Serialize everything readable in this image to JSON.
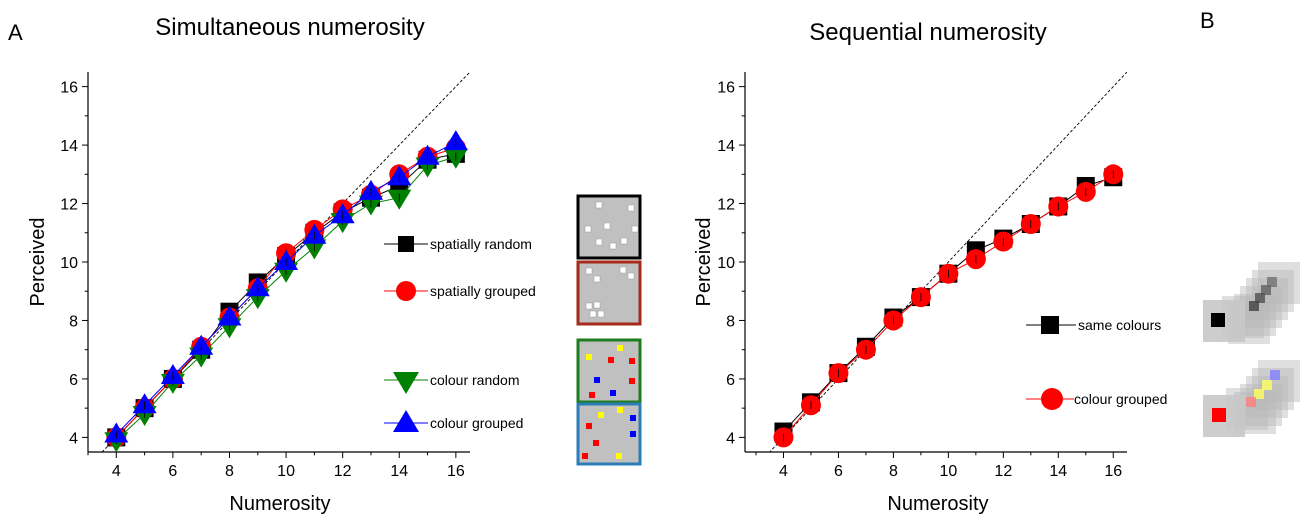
{
  "panel_letters": {
    "a": "A",
    "b": "B"
  },
  "chart_data": [
    {
      "type": "line",
      "title": "Simultaneous numerosity",
      "xlabel": "Numerosity",
      "ylabel": "Perceived",
      "xlim": [
        3,
        16.5
      ],
      "ylim": [
        3.5,
        16.5
      ],
      "xticks": [
        4,
        6,
        8,
        10,
        12,
        14,
        16
      ],
      "yticks": [
        4,
        6,
        8,
        10,
        12,
        14,
        16
      ],
      "identity_line": true,
      "grid": false,
      "legend_position": "right",
      "x": [
        4,
        5,
        6,
        7,
        8,
        9,
        10,
        11,
        12,
        13,
        14,
        15,
        16
      ],
      "series": [
        {
          "name": "spatially random",
          "marker": "square",
          "color": "#000000",
          "values": [
            4.0,
            5.0,
            6.0,
            7.0,
            8.3,
            9.3,
            10.2,
            11.0,
            11.7,
            12.2,
            12.6,
            13.5,
            13.7
          ]
        },
        {
          "name": "spatially grouped",
          "marker": "circle",
          "color": "#ff0000",
          "values": [
            4.0,
            5.0,
            6.0,
            7.1,
            8.1,
            9.1,
            10.3,
            11.1,
            11.8,
            12.3,
            13.0,
            13.6,
            13.9
          ]
        },
        {
          "name": "colour random",
          "marker": "triangle-down",
          "color": "#008000",
          "values": [
            3.9,
            4.8,
            5.9,
            6.8,
            7.8,
            8.8,
            9.7,
            10.5,
            11.4,
            12.0,
            12.2,
            13.3,
            13.6
          ]
        },
        {
          "name": "colour grouped",
          "marker": "triangle-up",
          "color": "#0000ff",
          "values": [
            4.1,
            5.1,
            6.1,
            7.1,
            8.1,
            9.1,
            10.0,
            10.9,
            11.6,
            12.4,
            12.9,
            13.6,
            14.1
          ]
        }
      ]
    },
    {
      "type": "line",
      "title": "Sequential numerosity",
      "xlabel": "Numerosity",
      "ylabel": "Perceived",
      "xlim": [
        2.6,
        16.5
      ],
      "ylim": [
        3.5,
        16.5
      ],
      "xticks": [
        4,
        6,
        8,
        10,
        12,
        14,
        16
      ],
      "yticks": [
        4,
        6,
        8,
        10,
        12,
        14,
        16
      ],
      "identity_line": true,
      "grid": false,
      "legend_position": "right",
      "x": [
        4,
        5,
        6,
        7,
        8,
        9,
        10,
        11,
        12,
        13,
        14,
        15,
        16
      ],
      "series": [
        {
          "name": "same colours",
          "marker": "square",
          "color": "#000000",
          "values": [
            4.2,
            5.2,
            6.2,
            7.1,
            8.1,
            8.8,
            9.6,
            10.4,
            10.8,
            11.3,
            11.9,
            12.6,
            12.9
          ]
        },
        {
          "name": "colour grouped",
          "marker": "circle",
          "color": "#ff0000",
          "values": [
            4.0,
            5.1,
            6.2,
            7.0,
            8.0,
            8.8,
            9.6,
            10.1,
            10.7,
            11.3,
            11.9,
            12.4,
            13.0
          ]
        }
      ]
    }
  ],
  "stimulus_colors": {
    "spatial_random_frame": "#000000",
    "spatial_grouped_frame": "#a52a1a",
    "colour_random_frame": "#1e7d1e",
    "colour_grouped_frame": "#2a7db5",
    "stimulus_background": "#c0c0c0"
  }
}
